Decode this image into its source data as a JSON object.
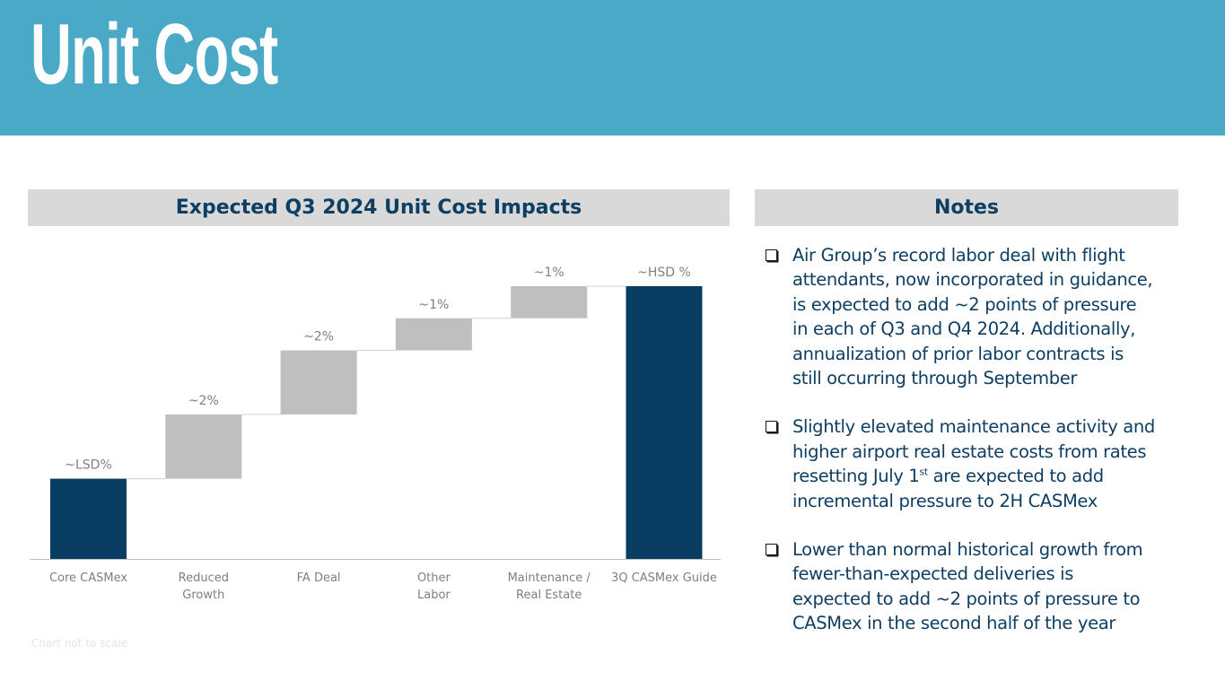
{
  "header": {
    "title": "Unit Cost",
    "chart_panel_title": "Expected Q3 2024 Unit Cost Impacts",
    "notes_panel_title": "Notes"
  },
  "footnote": "Chart not to scale",
  "colors": {
    "band": "#49a9c6",
    "navy": "#0a3d62",
    "increment": "#bfbfbf",
    "panel": "#d9d9d9",
    "text_navy": "#0e3e62",
    "label_gray": "#7f7f7f"
  },
  "chart_data": {
    "type": "bar",
    "subtype": "waterfall",
    "title": "Expected Q3 2024 Unit Cost Impacts",
    "categories": [
      "Core CASMex",
      "Reduced Growth",
      "FA Deal",
      "Other Labor",
      "Maintenance / Real Estate",
      "3Q CASMex Guide"
    ],
    "category_lines": [
      [
        "Core CASMex"
      ],
      [
        "Reduced",
        "Growth"
      ],
      [
        "FA Deal"
      ],
      [
        "Other",
        "Labor"
      ],
      [
        "Maintenance /",
        "Real Estate"
      ],
      [
        "3Q CASMex Guide"
      ]
    ],
    "labels": [
      "~LSD%",
      "~2%",
      "~2%",
      "~1%",
      "~1%",
      "~HSD %"
    ],
    "kinds": [
      "total",
      "increment",
      "increment",
      "increment",
      "increment",
      "total"
    ],
    "approx_values": [
      2.5,
      2,
      2,
      1,
      1,
      8.5
    ],
    "ylim": [
      0,
      8.5
    ],
    "note": "Chart not to scale"
  },
  "notes": [
    {
      "lines": [
        "Air Group’s record labor deal with flight",
        "attendants, now incorporated in guidance,",
        "is expected to add ~2 points of pressure",
        "in each of Q3 and Q4 2024. Additionally,",
        "annualization of prior labor contracts is",
        "still occurring through September"
      ]
    },
    {
      "lines": [
        "Slightly elevated maintenance activity and",
        "higher airport real estate costs from rates"
      ],
      "line3_pre": "resetting July 1",
      "line3_sup": "st",
      "line3_post": " are expected to add",
      "line4": "incremental pressure to 2H CASMex"
    },
    {
      "lines": [
        "Lower than normal historical growth from",
        "fewer-than-expected deliveries is",
        "expected to add ~2 points of pressure to",
        "CASMex in the second half of the year"
      ]
    }
  ]
}
